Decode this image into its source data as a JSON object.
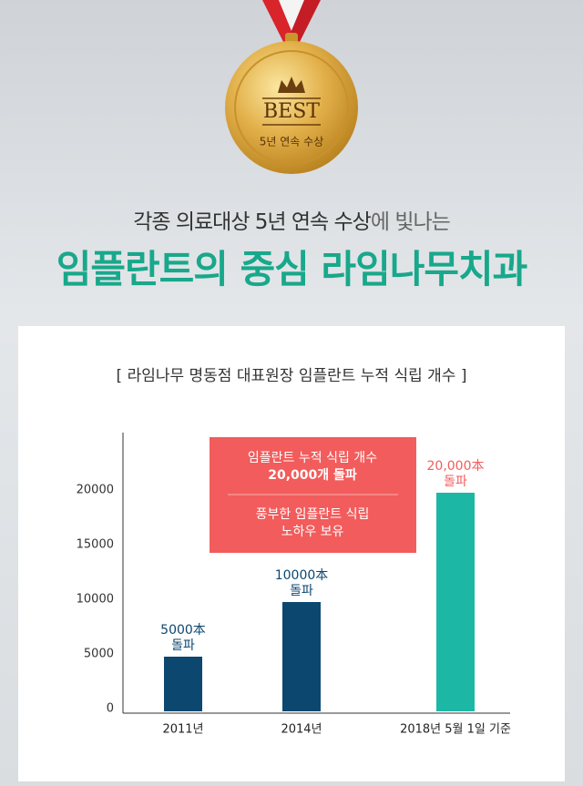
{
  "header": {
    "medal_top": "BEST",
    "medal_sub": "5년 연속 수상",
    "subtitle_strong": "각종 의료대상 5년 연속 수상",
    "subtitle_rest": "에 빛나는",
    "title": "임플란트의 중심 라임나무치과"
  },
  "chart_data": {
    "type": "bar",
    "title": "[ 라임나무 명동점 대표원장 임플란트 누적 식립 개수 ]",
    "categories": [
      "2011년",
      "2014년",
      "2018년 5월 1일 기준"
    ],
    "values": [
      5000,
      10000,
      20000
    ],
    "value_labels": [
      "5000本",
      "10000本",
      "20,000本"
    ],
    "value_label_notes": [
      "돌파",
      "돌파",
      "돌파"
    ],
    "colors": [
      "#0c4770",
      "#0c4770",
      "#1cb8a5"
    ],
    "label_colors": [
      "#0c4770",
      "#0c4770",
      "#f25c5c"
    ],
    "ylim": [
      0,
      25000
    ],
    "yticks": [
      0,
      5000,
      10000,
      15000,
      20000
    ],
    "grid": false,
    "callout": {
      "color": "#f25c5c",
      "lines": [
        "임플란트 누적 식립 개수",
        "20,000개 돌파",
        "풍부한 임플란트 식립",
        "노하우 보유"
      ]
    }
  }
}
